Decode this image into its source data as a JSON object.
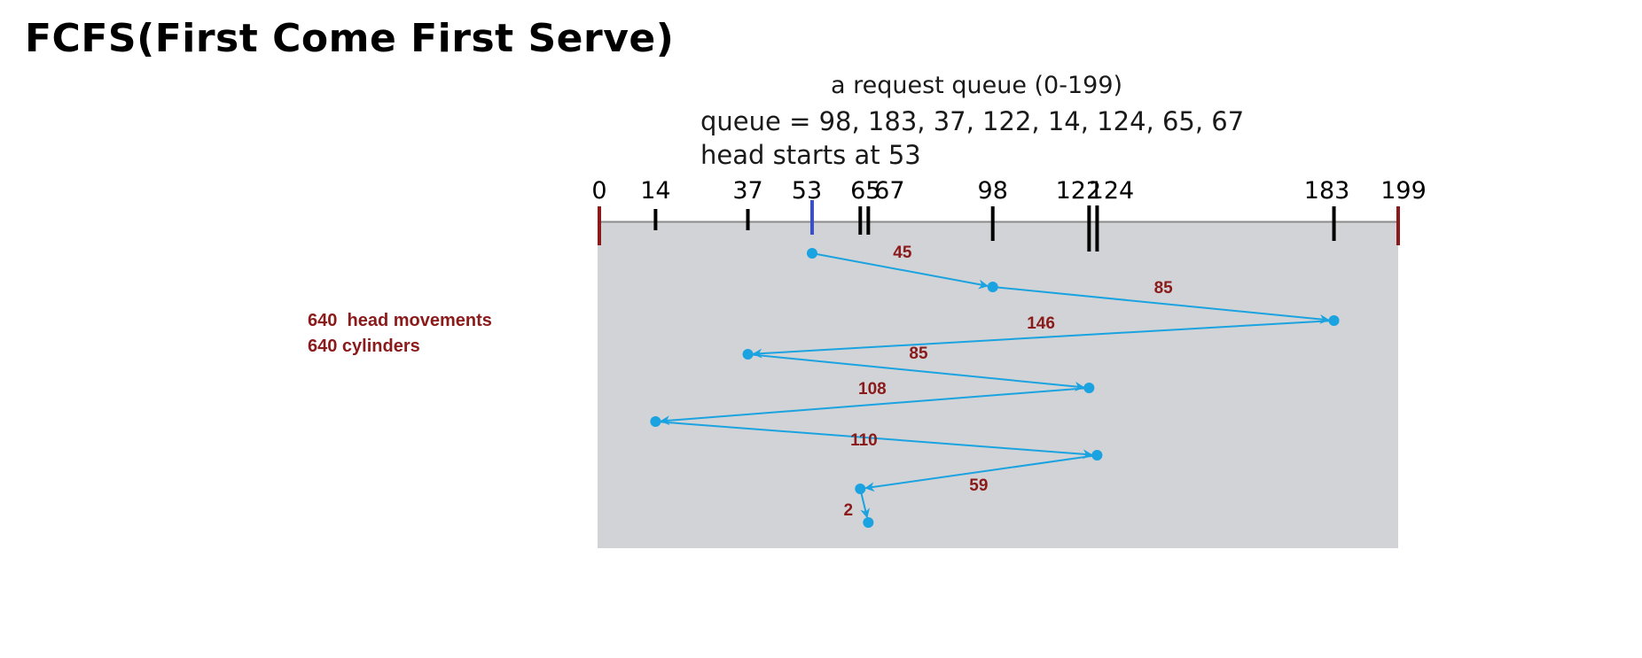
{
  "title": "FCFS(First Come First Serve)",
  "request": {
    "caption": "a request queue (0-199)",
    "queue_text": "queue = 98, 183, 37, 122, 14, 124, 65, 67",
    "head_text": "head starts at 53"
  },
  "summary": {
    "line1": "640  head movements",
    "line2": "640 cylinders"
  },
  "colors": {
    "title": "#000000",
    "accent_red": "#8b1a1a",
    "path_blue": "#1aa3e0",
    "head_tick": "#3a4fc4",
    "panel_gray": "#d1d3d6"
  },
  "chart_data": {
    "type": "diagram",
    "axis_range": [
      0,
      199
    ],
    "tick_labels": [
      "0",
      "14",
      "37",
      "53",
      "65",
      "67",
      "98",
      "122",
      "124",
      "183",
      "199"
    ],
    "ticks": [
      {
        "value": 0,
        "kind": "bound"
      },
      {
        "value": 14,
        "kind": "request"
      },
      {
        "value": 37,
        "kind": "request"
      },
      {
        "value": 53,
        "kind": "head"
      },
      {
        "value": 65,
        "kind": "request"
      },
      {
        "value": 67,
        "kind": "request"
      },
      {
        "value": 98,
        "kind": "request"
      },
      {
        "value": 122,
        "kind": "request"
      },
      {
        "value": 124,
        "kind": "request"
      },
      {
        "value": 183,
        "kind": "request"
      },
      {
        "value": 199,
        "kind": "bound"
      }
    ],
    "head_start": 53,
    "path": [
      53,
      98,
      183,
      37,
      122,
      14,
      124,
      65,
      67
    ],
    "movement_labels": [
      "45",
      "85",
      "146",
      "85",
      "108",
      "110",
      "59",
      "2"
    ]
  }
}
